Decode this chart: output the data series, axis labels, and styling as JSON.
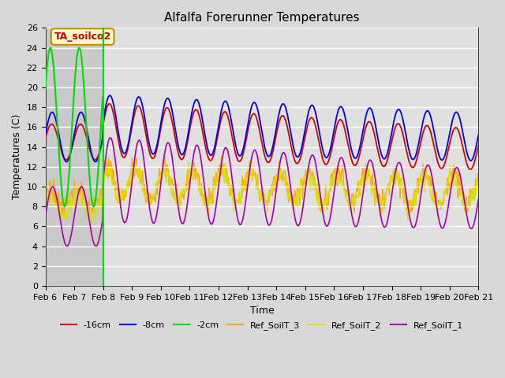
{
  "title": "Alfalfa Forerunner Temperatures",
  "xlabel": "Time",
  "ylabel": "Temperatures (C)",
  "annotation_text": "TA_soilco2",
  "annotation_color": "#cc0000",
  "annotation_bg": "#ffffcc",
  "annotation_border": "#cc8800",
  "ylim": [
    0,
    26
  ],
  "yticks": [
    0,
    2,
    4,
    6,
    8,
    10,
    12,
    14,
    16,
    18,
    20,
    22,
    24,
    26
  ],
  "bg_color": "#d8d8d8",
  "plot_bg": "#e0e0e0",
  "series_colors": {
    "m16cm": "#dd0000",
    "m8cm": "#0000ee",
    "m2cm": "#00dd00",
    "ref3": "#ffaa00",
    "ref2": "#dddd00",
    "ref1": "#aa00aa"
  },
  "legend": [
    {
      "label": "-16cm",
      "color": "#dd0000"
    },
    {
      "label": "-8cm",
      "color": "#0000ee"
    },
    {
      "label": "-2cm",
      "color": "#00dd00"
    },
    {
      "label": "Ref_SoilT_3",
      "color": "#ffaa00"
    },
    {
      "label": "Ref_SoilT_2",
      "color": "#dddd00"
    },
    {
      "label": "Ref_SoilT_1",
      "color": "#aa00aa"
    }
  ],
  "vline_color": "#00dd00",
  "shade_color": "#bbbbbb",
  "figsize": [
    6.4,
    4.8
  ],
  "dpi": 100
}
